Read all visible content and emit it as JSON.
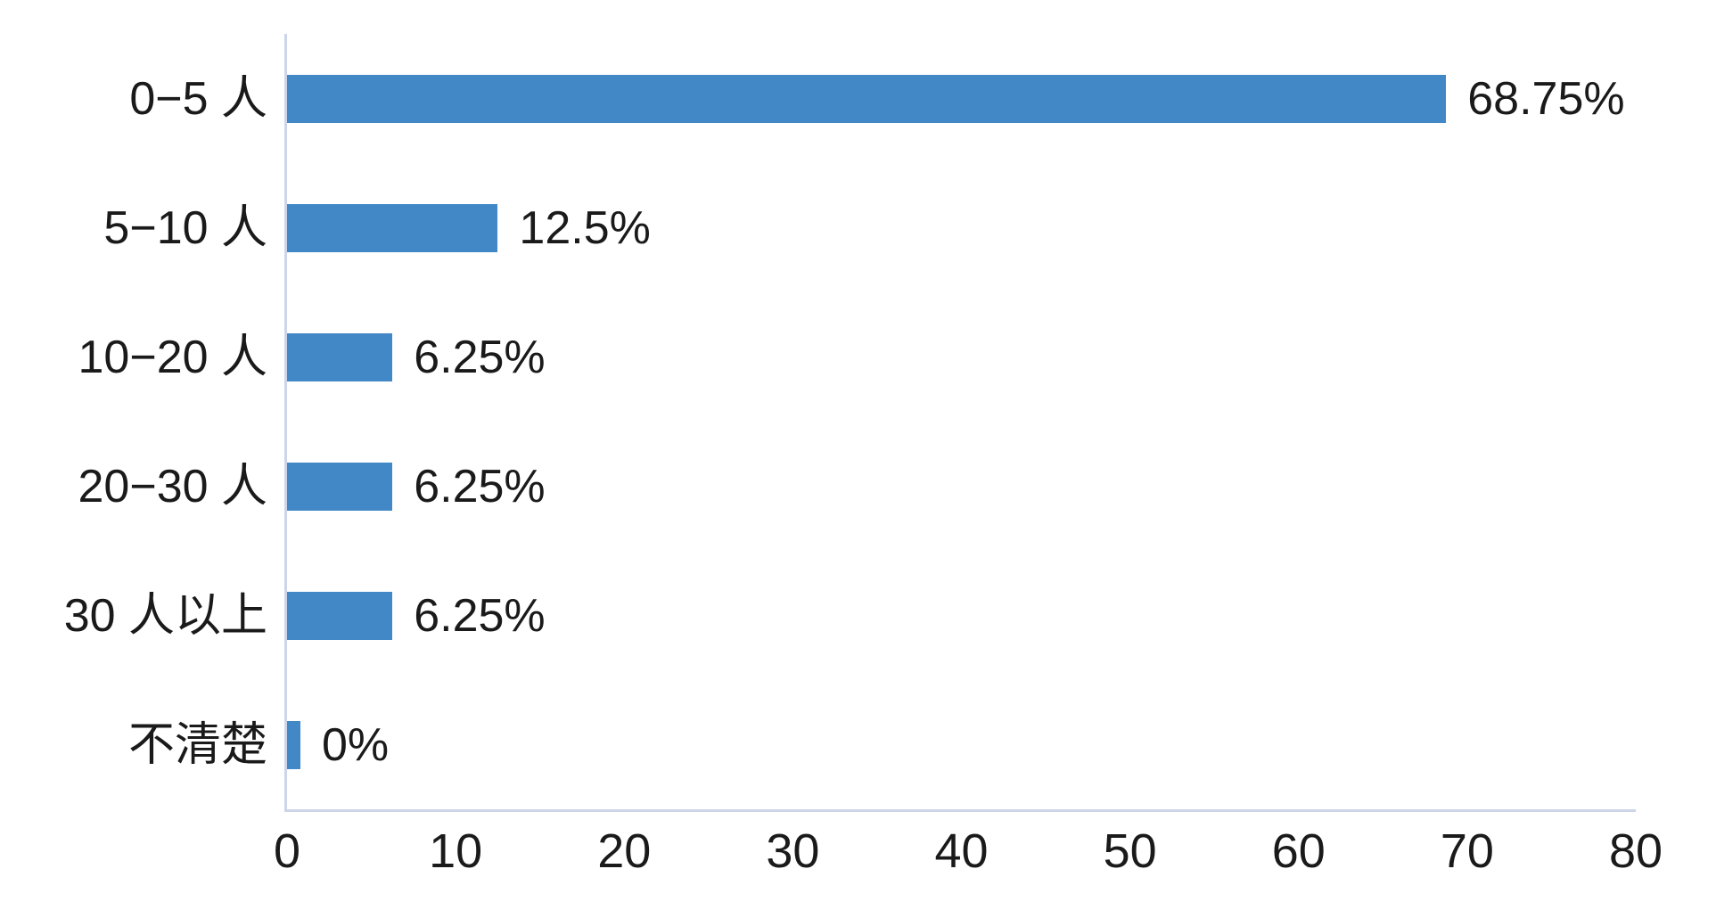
{
  "chart_data": {
    "type": "bar",
    "orientation": "horizontal",
    "title": "",
    "xlabel": "",
    "ylabel": "",
    "categories": [
      "0−5 人",
      "5−10 人",
      "10−20 人",
      "20−30 人",
      "30 人以上",
      "不清楚"
    ],
    "values": [
      68.75,
      12.5,
      6.25,
      6.25,
      6.25,
      0
    ],
    "value_labels": [
      "68.75%",
      "12.5%",
      "6.25%",
      "6.25%",
      "6.25%",
      "0%"
    ],
    "xticks": [
      "0",
      "10",
      "20",
      "30",
      "40",
      "50",
      "60",
      "70",
      "80"
    ],
    "xlim": [
      0,
      80
    ],
    "grid": false,
    "legend": false,
    "bar_color": "#4288c7",
    "axis_color": "#ccd6e8",
    "text_color": "#1a1a1a",
    "background_color": "#ffffff"
  }
}
